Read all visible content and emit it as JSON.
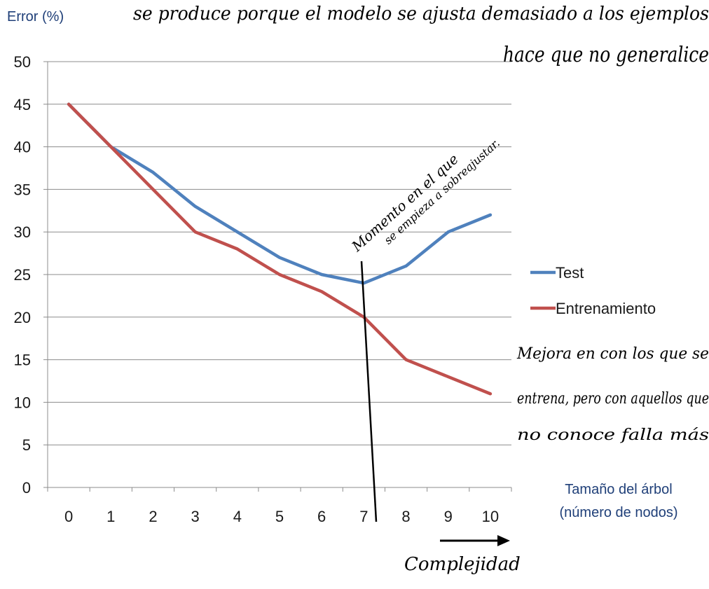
{
  "chart_data": {
    "type": "line",
    "xlabel_line1": "Tamaño del árbol",
    "xlabel_line2": "(número de nodos)",
    "ylabel": "Error (%)",
    "x": [
      0,
      1,
      2,
      3,
      4,
      5,
      6,
      7,
      8,
      9,
      10
    ],
    "xlim": [
      -0.5,
      10.5
    ],
    "ylim": [
      0,
      50
    ],
    "yticks": [
      0,
      5,
      10,
      15,
      20,
      25,
      30,
      35,
      40,
      45,
      50
    ],
    "grid": true,
    "legend_position": "right",
    "series": [
      {
        "name": "Test",
        "color": "#4f81bd",
        "values": [
          45,
          40,
          37,
          33,
          30,
          27,
          25,
          24,
          26,
          30,
          32
        ]
      },
      {
        "name": "Entrenamiento",
        "color": "#c0504d",
        "values": [
          45,
          40,
          35,
          30,
          28,
          25,
          23,
          20,
          15,
          13,
          11
        ]
      }
    ]
  },
  "annotations": {
    "top_line1": "se produce porque el modelo se ajusta demasiado a los ejemplos",
    "top_line2": "hace que no generalice",
    "diagonal_line1": "Momento en el que",
    "diagonal_line2": "se empieza a sobreajustar.",
    "right_line1": "Mejora en con los que se",
    "right_line2": "entrena, pero con aquellos que",
    "right_line3": "no conoce falla más",
    "bottom_arrow_label": "Complejidad"
  }
}
